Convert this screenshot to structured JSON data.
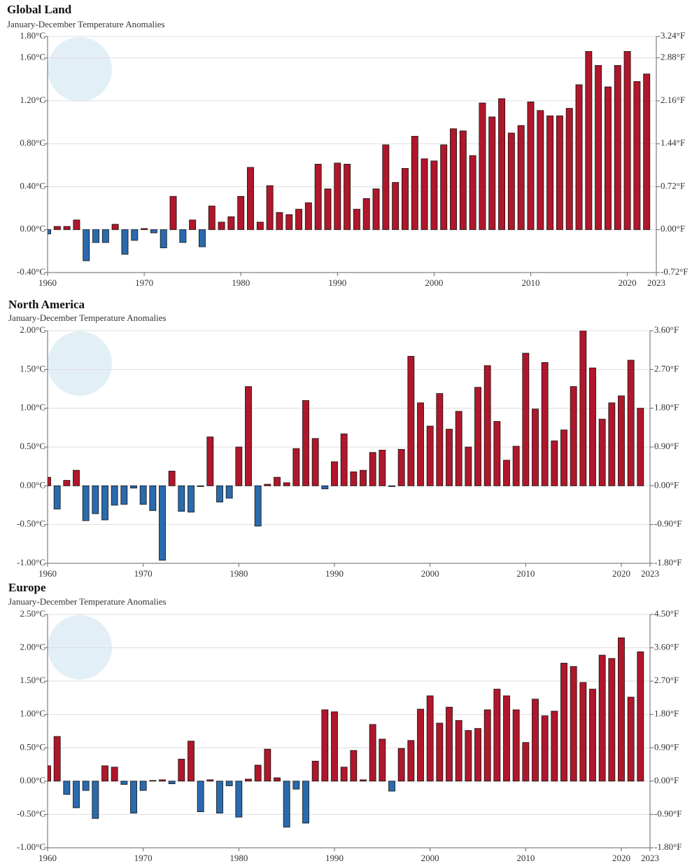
{
  "chart_data": [
    {
      "type": "bar",
      "title": "Global Land",
      "subtitle": "January-December Temperature Anomalies",
      "x": [
        1960,
        1961,
        1962,
        1963,
        1964,
        1965,
        1966,
        1967,
        1968,
        1969,
        1970,
        1971,
        1972,
        1973,
        1974,
        1975,
        1976,
        1977,
        1978,
        1979,
        1980,
        1981,
        1982,
        1983,
        1984,
        1985,
        1986,
        1987,
        1988,
        1989,
        1990,
        1991,
        1992,
        1993,
        1994,
        1995,
        1996,
        1997,
        1998,
        1999,
        2000,
        2001,
        2002,
        2003,
        2004,
        2005,
        2006,
        2007,
        2008,
        2009,
        2010,
        2011,
        2012,
        2013,
        2014,
        2015,
        2016,
        2017,
        2018,
        2019,
        2020,
        2021,
        2022
      ],
      "values": [
        -0.04,
        0.03,
        0.03,
        0.09,
        -0.29,
        -0.12,
        -0.12,
        0.05,
        -0.23,
        -0.1,
        0.01,
        -0.03,
        -0.17,
        0.31,
        -0.12,
        0.09,
        -0.16,
        0.22,
        0.07,
        0.12,
        0.31,
        0.58,
        0.07,
        0.41,
        0.16,
        0.14,
        0.19,
        0.25,
        0.61,
        0.38,
        0.62,
        0.61,
        0.19,
        0.29,
        0.38,
        0.79,
        0.44,
        0.57,
        0.87,
        0.66,
        0.64,
        0.79,
        0.94,
        0.92,
        0.69,
        1.18,
        1.05,
        1.22,
        0.9,
        0.97,
        1.19,
        1.11,
        1.06,
        1.06,
        1.13,
        1.35,
        1.66,
        1.53,
        1.33,
        1.53,
        1.66,
        1.38,
        1.45
      ],
      "positive_color": "#b0172a",
      "negative_color": "#2a6aad",
      "xlim": [
        1960,
        2023
      ],
      "xticks": [
        1960,
        1970,
        1980,
        1990,
        2000,
        2010,
        2020,
        2023
      ],
      "ylim": [
        -0.4,
        1.8
      ],
      "yticks": [
        {
          "value": -0.4,
          "label": "-0.40°C"
        },
        {
          "value": 0,
          "label": "0.00°C"
        },
        {
          "value": 0.4,
          "label": "0.40°C"
        },
        {
          "value": 0.8,
          "label": "0.80°C"
        },
        {
          "value": 1.2,
          "label": "1.20°C"
        },
        {
          "value": 1.6,
          "label": "1.60°C"
        },
        {
          "value": 1.8,
          "label": "1.80°C"
        }
      ],
      "y2lim": [
        -0.72,
        3.24
      ],
      "y2ticks": [
        {
          "value": -0.72,
          "label": "-0.72°F"
        },
        {
          "value": 0,
          "label": "0.00°F"
        },
        {
          "value": 0.72,
          "label": "0.72°F"
        },
        {
          "value": 1.44,
          "label": "1.44°F"
        },
        {
          "value": 2.16,
          "label": "2.16°F"
        },
        {
          "value": 2.88,
          "label": "2.88°F"
        },
        {
          "value": 3.24,
          "label": "3.24°F"
        }
      ],
      "grid": true
    },
    {
      "type": "bar",
      "title": "North America",
      "subtitle": "January-December Temperature Anomalies",
      "x": [
        1960,
        1961,
        1962,
        1963,
        1964,
        1965,
        1966,
        1967,
        1968,
        1969,
        1970,
        1971,
        1972,
        1973,
        1974,
        1975,
        1976,
        1977,
        1978,
        1979,
        1980,
        1981,
        1982,
        1983,
        1984,
        1985,
        1986,
        1987,
        1988,
        1989,
        1990,
        1991,
        1992,
        1993,
        1994,
        1995,
        1996,
        1997,
        1998,
        1999,
        2000,
        2001,
        2002,
        2003,
        2004,
        2005,
        2006,
        2007,
        2008,
        2009,
        2010,
        2011,
        2012,
        2013,
        2014,
        2015,
        2016,
        2017,
        2018,
        2019,
        2020,
        2021,
        2022
      ],
      "values": [
        0.11,
        -0.3,
        0.07,
        0.2,
        -0.45,
        -0.36,
        -0.44,
        -0.25,
        -0.24,
        -0.03,
        -0.24,
        -0.32,
        -0.96,
        0.19,
        -0.33,
        -0.34,
        -0.01,
        0.63,
        -0.21,
        -0.16,
        0.5,
        1.28,
        -0.52,
        0.02,
        0.11,
        0.04,
        0.48,
        1.1,
        0.61,
        -0.04,
        0.31,
        0.67,
        0.18,
        0.2,
        0.43,
        0.46,
        -0.01,
        0.47,
        1.67,
        1.07,
        0.77,
        1.19,
        0.73,
        0.96,
        0.5,
        1.27,
        1.55,
        0.83,
        0.33,
        0.51,
        1.71,
        0.99,
        1.59,
        0.58,
        0.72,
        1.28,
        2.0,
        1.52,
        0.86,
        1.07,
        1.16,
        1.62,
        1.0
      ],
      "positive_color": "#b0172a",
      "negative_color": "#2a6aad",
      "xlim": [
        1960,
        2023
      ],
      "xticks": [
        1960,
        1970,
        1980,
        1990,
        2000,
        2010,
        2020,
        2023
      ],
      "ylim": [
        -1,
        2
      ],
      "yticks": [
        {
          "value": -1,
          "label": "-1.00°C"
        },
        {
          "value": -0.5,
          "label": "-0.50°C"
        },
        {
          "value": 0,
          "label": "0.00°C"
        },
        {
          "value": 0.5,
          "label": "0.50°C"
        },
        {
          "value": 1,
          "label": "1.00°C"
        },
        {
          "value": 1.5,
          "label": "1.50°C"
        },
        {
          "value": 2,
          "label": "2.00°C"
        }
      ],
      "y2lim": [
        -1.8,
        3.6
      ],
      "y2ticks": [
        {
          "value": -1.8,
          "label": "-1.80°F"
        },
        {
          "value": -0.9,
          "label": "-0.90°F"
        },
        {
          "value": 0,
          "label": "0.00°F"
        },
        {
          "value": 0.9,
          "label": "0.90°F"
        },
        {
          "value": 1.8,
          "label": "1.80°F"
        },
        {
          "value": 2.7,
          "label": "2.70°F"
        },
        {
          "value": 3.6,
          "label": "3.60°F"
        }
      ],
      "grid": true
    },
    {
      "type": "bar",
      "title": "Europe",
      "subtitle": "January-December Temperature Anomalies",
      "x": [
        1960,
        1961,
        1962,
        1963,
        1964,
        1965,
        1966,
        1967,
        1968,
        1969,
        1970,
        1971,
        1972,
        1973,
        1974,
        1975,
        1976,
        1977,
        1978,
        1979,
        1980,
        1981,
        1982,
        1983,
        1984,
        1985,
        1986,
        1987,
        1988,
        1989,
        1990,
        1991,
        1992,
        1993,
        1994,
        1995,
        1996,
        1997,
        1998,
        1999,
        2000,
        2001,
        2002,
        2003,
        2004,
        2005,
        2006,
        2007,
        2008,
        2009,
        2010,
        2011,
        2012,
        2013,
        2014,
        2015,
        2016,
        2017,
        2018,
        2019,
        2020,
        2021,
        2022
      ],
      "values": [
        0.23,
        0.67,
        -0.2,
        -0.4,
        -0.14,
        -0.56,
        0.23,
        0.21,
        -0.05,
        -0.48,
        -0.14,
        0.01,
        0.02,
        -0.04,
        0.33,
        0.6,
        -0.46,
        0.02,
        -0.48,
        -0.07,
        -0.54,
        0.03,
        0.24,
        0.48,
        0.05,
        -0.69,
        -0.12,
        -0.63,
        0.3,
        1.07,
        1.04,
        0.21,
        0.46,
        0.02,
        0.85,
        0.63,
        -0.15,
        0.49,
        0.61,
        1.08,
        1.28,
        0.87,
        1.11,
        0.91,
        0.76,
        0.79,
        1.07,
        1.38,
        1.28,
        1.07,
        0.58,
        1.23,
        0.98,
        1.05,
        1.77,
        1.72,
        1.48,
        1.38,
        1.89,
        1.84,
        2.15,
        1.26,
        1.94
      ],
      "positive_color": "#b0172a",
      "negative_color": "#2a6aad",
      "xlim": [
        1960,
        2023
      ],
      "xticks": [
        1960,
        1970,
        1980,
        1990,
        2000,
        2010,
        2020,
        2023
      ],
      "ylim": [
        -1,
        2.5
      ],
      "yticks": [
        {
          "value": -1,
          "label": "-1.00°C"
        },
        {
          "value": -0.5,
          "label": "-0.50°C"
        },
        {
          "value": 0,
          "label": "0.00°C"
        },
        {
          "value": 0.5,
          "label": "0.50°C"
        },
        {
          "value": 1,
          "label": "1.00°C"
        },
        {
          "value": 1.5,
          "label": "1.50°C"
        },
        {
          "value": 2,
          "label": "2.00°C"
        },
        {
          "value": 2.5,
          "label": "2.50°C"
        }
      ],
      "y2lim": [
        -1.8,
        4.5
      ],
      "y2ticks": [
        {
          "value": -1.8,
          "label": "-1.80°F"
        },
        {
          "value": -0.9,
          "label": "-0.90°F"
        },
        {
          "value": 0,
          "label": "0.00°F"
        },
        {
          "value": 0.9,
          "label": "0.90°F"
        },
        {
          "value": 1.8,
          "label": "1.80°F"
        },
        {
          "value": 2.7,
          "label": "2.70°F"
        },
        {
          "value": 3.6,
          "label": "3.60°F"
        },
        {
          "value": 4.5,
          "label": "4.50°F"
        }
      ],
      "grid": true
    }
  ]
}
